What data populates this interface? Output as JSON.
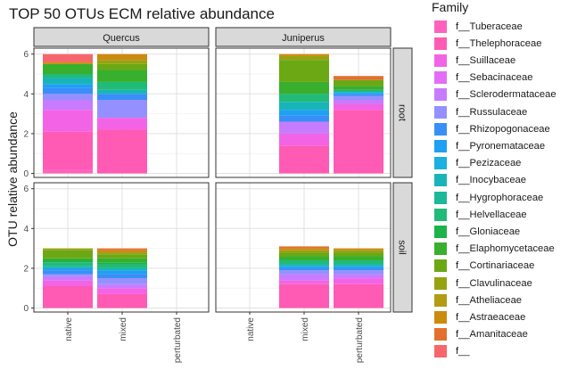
{
  "chart_data": {
    "type": "bar",
    "stacked": true,
    "faceted": true,
    "title": "TOP 50 OTUs ECM relative abundance",
    "xlabel": "",
    "ylabel": "OTU relative abundance",
    "ylim": [
      -0.2,
      6.3
    ],
    "yticks": [
      "0",
      "2",
      "4",
      "6"
    ],
    "grid": true,
    "legend_position": "right",
    "legend_title": "Family",
    "column_facets": [
      "Quercus",
      "Juniperus"
    ],
    "row_facets": [
      "root",
      "soil"
    ],
    "categories": [
      "native",
      "mixed",
      "perturbated"
    ],
    "families": [
      {
        "name": "f__Tuberaceae",
        "color": "#FF62BC"
      },
      {
        "name": "f__Thelephoraceae",
        "color": "#FF5AB4"
      },
      {
        "name": "f__Suillaceae",
        "color": "#F264E5"
      },
      {
        "name": "f__Sebacinaceae",
        "color": "#E26EF7"
      },
      {
        "name": "f__Sclerodermataceae",
        "color": "#C77CFF"
      },
      {
        "name": "f__Russulaceae",
        "color": "#9590FF"
      },
      {
        "name": "f__Rhizopogonaceae",
        "color": "#3A8EF7"
      },
      {
        "name": "f__Pyronemataceae",
        "color": "#1FA0F3"
      },
      {
        "name": "f__Pezizaceae",
        "color": "#1AB0E0"
      },
      {
        "name": "f__Inocybaceae",
        "color": "#18B5B8"
      },
      {
        "name": "f__Hygrophoraceae",
        "color": "#1CB89A"
      },
      {
        "name": "f__Helvellaceae",
        "color": "#22BA79"
      },
      {
        "name": "f__Gloniaceae",
        "color": "#1CB34A"
      },
      {
        "name": "f__Elaphomycetaceae",
        "color": "#38AF2D"
      },
      {
        "name": "f__Cortinariaceae",
        "color": "#6BA814"
      },
      {
        "name": "f__Clavulinaceae",
        "color": "#95A312"
      },
      {
        "name": "f__Atheliaceae",
        "color": "#B39B14"
      },
      {
        "name": "f__Astraeaceae",
        "color": "#CC8A0E"
      },
      {
        "name": "f__Amanitaceae",
        "color": "#E2712E"
      },
      {
        "name": "f__",
        "color": "#F8666D"
      }
    ],
    "panels": [
      {
        "col": "Quercus",
        "row": "root",
        "bars": [
          {
            "category": "native",
            "segments": [
              {
                "family": "f__Tuberaceae",
                "value": 0.2
              },
              {
                "family": "f__Thelephoraceae",
                "value": 1.9
              },
              {
                "family": "f__Suillaceae",
                "value": 1.1
              },
              {
                "family": "f__Sclerodermataceae",
                "value": 0.5
              },
              {
                "family": "f__Russulaceae",
                "value": 0.3
              },
              {
                "family": "f__Rhizopogonaceae",
                "value": 0.3
              },
              {
                "family": "f__Pyronemataceae",
                "value": 0.2
              },
              {
                "family": "f__Inocybaceae",
                "value": 0.3
              },
              {
                "family": "f__Helvellaceae",
                "value": 0.2
              },
              {
                "family": "f__Elaphomycetaceae",
                "value": 0.5
              },
              {
                "family": "f__Astraeaceae",
                "value": 0.1
              },
              {
                "family": "f__",
                "value": 0.4
              }
            ]
          },
          {
            "category": "mixed",
            "segments": [
              {
                "family": "f__Thelephoraceae",
                "value": 2.2
              },
              {
                "family": "f__Suillaceae",
                "value": 0.6
              },
              {
                "family": "f__Russulaceae",
                "value": 0.9
              },
              {
                "family": "f__Rhizopogonaceae",
                "value": 0.3
              },
              {
                "family": "f__Inocybaceae",
                "value": 0.2
              },
              {
                "family": "f__Helvellaceae",
                "value": 0.4
              },
              {
                "family": "f__Elaphomycetaceae",
                "value": 0.6
              },
              {
                "family": "f__Cortinariaceae",
                "value": 0.3
              },
              {
                "family": "f__Clavulinaceae",
                "value": 0.2
              },
              {
                "family": "f__Astraeaceae",
                "value": 0.3
              }
            ]
          },
          {
            "category": "perturbated",
            "segments": []
          }
        ]
      },
      {
        "col": "Juniperus",
        "row": "root",
        "bars": [
          {
            "category": "native",
            "segments": []
          },
          {
            "category": "mixed",
            "segments": [
              {
                "family": "f__Thelephoraceae",
                "value": 1.4
              },
              {
                "family": "f__Suillaceae",
                "value": 0.6
              },
              {
                "family": "f__Sclerodermataceae",
                "value": 0.6
              },
              {
                "family": "f__Rhizopogonaceae",
                "value": 0.3
              },
              {
                "family": "f__Pyronemataceae",
                "value": 0.3
              },
              {
                "family": "f__Inocybaceae",
                "value": 0.4
              },
              {
                "family": "f__Helvellaceae",
                "value": 0.4
              },
              {
                "family": "f__Elaphomycetaceae",
                "value": 0.6
              },
              {
                "family": "f__Cortinariaceae",
                "value": 1.1
              },
              {
                "family": "f__Clavulinaceae",
                "value": 0.2
              },
              {
                "family": "f__Astraeaceae",
                "value": 0.1
              }
            ]
          },
          {
            "category": "perturbated",
            "segments": [
              {
                "family": "f__Thelephoraceae",
                "value": 3.2
              },
              {
                "family": "f__Suillaceae",
                "value": 0.3
              },
              {
                "family": "f__Sclerodermataceae",
                "value": 0.2
              },
              {
                "family": "f__Russulaceae",
                "value": 0.2
              },
              {
                "family": "f__Rhizopogonaceae",
                "value": 0.1
              },
              {
                "family": "f__Pezizaceae",
                "value": 0.1
              },
              {
                "family": "f__Helvellaceae",
                "value": 0.1
              },
              {
                "family": "f__Elaphomycetaceae",
                "value": 0.2
              },
              {
                "family": "f__Cortinariaceae",
                "value": 0.3
              },
              {
                "family": "f__Amanitaceae",
                "value": 0.2
              }
            ]
          }
        ]
      },
      {
        "col": "Quercus",
        "row": "soil",
        "bars": [
          {
            "category": "native",
            "segments": [
              {
                "family": "f__Thelephoraceae",
                "value": 1.1
              },
              {
                "family": "f__Suillaceae",
                "value": 0.3
              },
              {
                "family": "f__Sclerodermataceae",
                "value": 0.2
              },
              {
                "family": "f__Russulaceae",
                "value": 0.1
              },
              {
                "family": "f__Rhizopogonaceae",
                "value": 0.2
              },
              {
                "family": "f__Pyronemataceae",
                "value": 0.1
              },
              {
                "family": "f__Inocybaceae",
                "value": 0.1
              },
              {
                "family": "f__Helvellaceae",
                "value": 0.2
              },
              {
                "family": "f__Gloniaceae",
                "value": 0.1
              },
              {
                "family": "f__Elaphomycetaceae",
                "value": 0.1
              },
              {
                "family": "f__Cortinariaceae",
                "value": 0.4
              },
              {
                "family": "f__Clavulinaceae",
                "value": 0.1
              }
            ]
          },
          {
            "category": "mixed",
            "segments": [
              {
                "family": "f__Thelephoraceae",
                "value": 0.7
              },
              {
                "family": "f__Suillaceae",
                "value": 0.3
              },
              {
                "family": "f__Sclerodermataceae",
                "value": 0.2
              },
              {
                "family": "f__Russulaceae",
                "value": 0.3
              },
              {
                "family": "f__Rhizopogonaceae",
                "value": 0.2
              },
              {
                "family": "f__Pyronemataceae",
                "value": 0.2
              },
              {
                "family": "f__Inocybaceae",
                "value": 0.1
              },
              {
                "family": "f__Helvellaceae",
                "value": 0.2
              },
              {
                "family": "f__Gloniaceae",
                "value": 0.1
              },
              {
                "family": "f__Elaphomycetaceae",
                "value": 0.2
              },
              {
                "family": "f__Cortinariaceae",
                "value": 0.2
              },
              {
                "family": "f__Clavulinaceae",
                "value": 0.1
              },
              {
                "family": "f__Astraeaceae",
                "value": 0.1
              },
              {
                "family": "f__Amanitaceae",
                "value": 0.1
              }
            ]
          },
          {
            "category": "perturbated",
            "segments": []
          }
        ]
      },
      {
        "col": "Juniperus",
        "row": "soil",
        "bars": [
          {
            "category": "native",
            "segments": []
          },
          {
            "category": "mixed",
            "segments": [
              {
                "family": "f__Thelephoraceae",
                "value": 1.2
              },
              {
                "family": "f__Suillaceae",
                "value": 0.2
              },
              {
                "family": "f__Sclerodermataceae",
                "value": 0.3
              },
              {
                "family": "f__Russulaceae",
                "value": 0.2
              },
              {
                "family": "f__Rhizopogonaceae",
                "value": 0.1
              },
              {
                "family": "f__Pyronemataceae",
                "value": 0.1
              },
              {
                "family": "f__Inocybaceae",
                "value": 0.1
              },
              {
                "family": "f__Helvellaceae",
                "value": 0.2
              },
              {
                "family": "f__Elaphomycetaceae",
                "value": 0.2
              },
              {
                "family": "f__Cortinariaceae",
                "value": 0.2
              },
              {
                "family": "f__Clavulinaceae",
                "value": 0.1
              },
              {
                "family": "f__Astraeaceae",
                "value": 0.1
              },
              {
                "family": "f__Amanitaceae",
                "value": 0.1
              }
            ]
          },
          {
            "category": "perturbated",
            "segments": [
              {
                "family": "f__Thelephoraceae",
                "value": 1.2
              },
              {
                "family": "f__Suillaceae",
                "value": 0.3
              },
              {
                "family": "f__Sclerodermataceae",
                "value": 0.2
              },
              {
                "family": "f__Russulaceae",
                "value": 0.2
              },
              {
                "family": "f__Rhizopogonaceae",
                "value": 0.1
              },
              {
                "family": "f__Pyronemataceae",
                "value": 0.1
              },
              {
                "family": "f__Inocybaceae",
                "value": 0.1
              },
              {
                "family": "f__Helvellaceae",
                "value": 0.2
              },
              {
                "family": "f__Elaphomycetaceae",
                "value": 0.2
              },
              {
                "family": "f__Cortinariaceae",
                "value": 0.2
              },
              {
                "family": "f__Clavulinaceae",
                "value": 0.1
              },
              {
                "family": "f__Astraeaceae",
                "value": 0.1
              }
            ]
          }
        ]
      }
    ]
  }
}
